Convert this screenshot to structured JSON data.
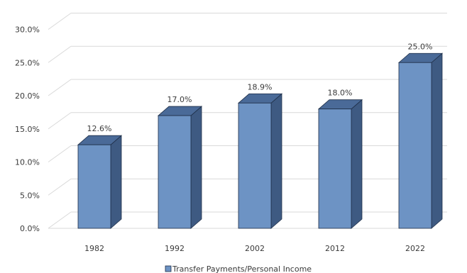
{
  "chart_data": {
    "type": "bar",
    "categories": [
      "1982",
      "1992",
      "2002",
      "2012",
      "2022"
    ],
    "series": [
      {
        "name": "Transfer Payments/Personal Income",
        "values": [
          12.6,
          17.0,
          18.9,
          18.0,
          25.0
        ],
        "data_labels": [
          "12.6%",
          "17.0%",
          "18.9%",
          "18.0%",
          "25.0%"
        ]
      }
    ],
    "y_ticks": [
      "0.0%",
      "5.0%",
      "10.0%",
      "15.0%",
      "20.0%",
      "25.0%",
      "30.0%"
    ],
    "ylim": [
      0,
      30
    ],
    "grid": true,
    "legend_position": "bottom",
    "style": "3d-bar",
    "colors": {
      "bar_front": "#6d93c4",
      "bar_side": "#3e5a82",
      "bar_top": "#4a6a98",
      "bar_edge": "#1f2f48",
      "grid": "#d9d9d9"
    }
  }
}
